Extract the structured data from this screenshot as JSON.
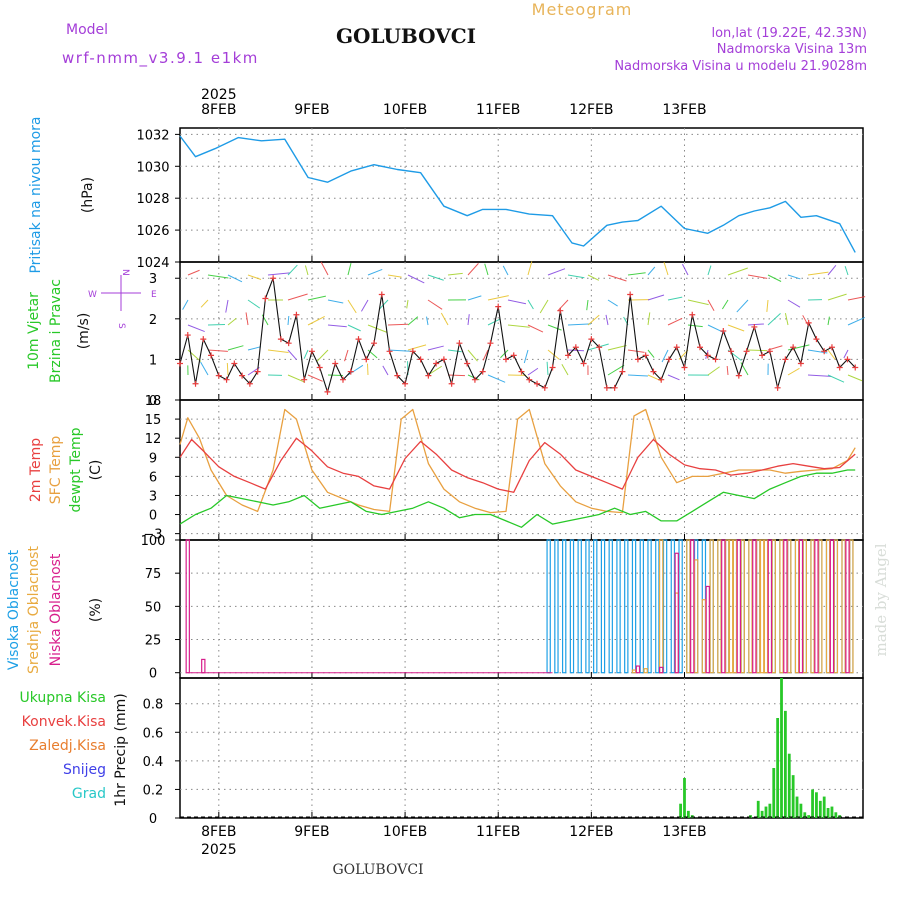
{
  "header": {
    "model_label": "Model",
    "model_name": "wrf-nmm_v3.9.1 e1km",
    "station": "GOLUBOVCI",
    "meteogram_label": "Meteogram",
    "lonlat": "lon,lat (19.22E, 42.33N)",
    "elevation": "Nadmorska Visina 13m",
    "model_elevation": "Nadmorska Visina u modelu 21.9028m"
  },
  "footer": {
    "station": "GOLUBOVCI",
    "credit": "made by Angel"
  },
  "colors": {
    "pressure": "#1e9be6",
    "wind_speed": "#111111",
    "wind_marker": "#e83c3c",
    "temp_2m": "#e84040",
    "temp_sfc": "#e8a040",
    "dewpoint": "#28c828",
    "cloud_high": "#1ea0e6",
    "cloud_mid": "#e8aa40",
    "cloud_low": "#d81e8c",
    "precip_total": "#28c828",
    "precip_conv": "#e84040",
    "precip_snow": "#4040e8",
    "precip_frozen": "#e87e2e",
    "precip_graupel": "#28c8c8",
    "grid": "#888888"
  },
  "time_axis": {
    "year": "2025",
    "days": [
      {
        "label": "8FEB",
        "day": 8
      },
      {
        "label": "9FEB",
        "day": 9
      },
      {
        "label": "10FEB",
        "day": 10
      },
      {
        "label": "11FEB",
        "day": 11
      },
      {
        "label": "12FEB",
        "day": 12
      },
      {
        "label": "13FEB",
        "day": 13
      }
    ],
    "xlim": [
      "2025-02-07 14:00",
      "2025-02-13 12:00"
    ]
  },
  "legend": {
    "pressure": [
      "Pritisak na nivou mora",
      "(hPa)"
    ],
    "wind": [
      "10m Vjetar",
      "Brzina i Pravac",
      "(m/s)"
    ],
    "compass": {
      "w": "W",
      "e": "E",
      "n": "N",
      "s": "S"
    },
    "temp": [
      "2m Temp",
      "SFC Temp",
      "dewpt Temp",
      "(C)"
    ],
    "cloud": [
      "Visoka Oblacnost",
      "Srednja Oblacnost",
      "Niska Oblacnost",
      "(%)"
    ],
    "precip": [
      "Ukupna Kisa",
      "Konvek.Kisa",
      "Zaledj.Kisa",
      "Snijeg",
      "Grad",
      "1hr Precip (mm)"
    ]
  },
  "chart_data": [
    {
      "type": "line",
      "title": "",
      "ylabel": "(hPa)",
      "ylim": [
        1024,
        1032.4
      ],
      "yticks": [
        1024,
        1026,
        1028,
        1030,
        1032
      ],
      "grid": true,
      "series": [
        {
          "name": "Pritisak na nivou mora",
          "x": [
            0,
            4,
            9,
            15,
            21,
            27,
            33,
            38,
            44,
            50,
            56,
            62,
            68,
            74,
            78,
            84,
            90,
            96,
            101,
            104,
            110,
            114,
            118,
            124,
            130,
            136,
            140,
            144,
            148,
            152,
            156,
            160,
            164,
            170,
            174
          ],
          "y": [
            1031.9,
            1030.6,
            1031.1,
            1031.8,
            1031.6,
            1031.7,
            1029.3,
            1029.0,
            1029.7,
            1030.1,
            1029.8,
            1029.6,
            1027.5,
            1026.9,
            1027.3,
            1027.3,
            1027.0,
            1026.9,
            1025.2,
            1025.0,
            1026.3,
            1026.5,
            1026.6,
            1027.5,
            1026.1,
            1025.8,
            1026.3,
            1026.9,
            1027.2,
            1027.4,
            1027.8,
            1026.8,
            1026.9,
            1026.4,
            1024.6
          ]
        }
      ]
    },
    {
      "type": "line",
      "title": "",
      "ylabel": "(m/s)",
      "ylim": [
        0,
        3.4
      ],
      "yticks": [
        0,
        1,
        2,
        3
      ],
      "grid": true,
      "series": [
        {
          "name": "10m Vjetar",
          "x": [
            0,
            2,
            4,
            6,
            8,
            10,
            12,
            14,
            16,
            18,
            20,
            22,
            24,
            26,
            28,
            30,
            32,
            34,
            36,
            38,
            40,
            42,
            44,
            46,
            48,
            50,
            52,
            54,
            56,
            58,
            60,
            62,
            64,
            66,
            68,
            70,
            72,
            74,
            76,
            78,
            80,
            82,
            84,
            86,
            88,
            90,
            92,
            94,
            96,
            98,
            100,
            102,
            104,
            106,
            108,
            110,
            112,
            114,
            116,
            118,
            120,
            122,
            124,
            126,
            128,
            130,
            132,
            134,
            136,
            138,
            140,
            142,
            144,
            146,
            148,
            150,
            152,
            154,
            156,
            158,
            160,
            162,
            164,
            166,
            168,
            170,
            172,
            174
          ],
          "y": [
            0.9,
            1.6,
            0.4,
            1.5,
            1.1,
            0.6,
            0.5,
            0.9,
            0.6,
            0.4,
            0.7,
            2.5,
            3.0,
            1.5,
            1.4,
            2.1,
            0.5,
            1.2,
            0.8,
            0.2,
            0.9,
            0.5,
            0.7,
            1.5,
            1.0,
            1.4,
            2.6,
            1.2,
            0.6,
            0.4,
            1.2,
            1.0,
            0.6,
            0.9,
            1.0,
            0.4,
            1.4,
            0.9,
            0.5,
            0.7,
            1.4,
            2.3,
            1.0,
            1.1,
            0.7,
            0.5,
            0.4,
            0.3,
            0.8,
            2.2,
            1.1,
            1.3,
            0.9,
            1.5,
            1.3,
            0.3,
            0.3,
            0.7,
            2.6,
            1.0,
            1.1,
            0.7,
            0.5,
            1.0,
            1.3,
            0.8,
            2.1,
            1.3,
            1.1,
            1.0,
            1.7,
            1.2,
            0.6,
            1.2,
            1.8,
            1.1,
            1.2,
            0.3,
            1.0,
            1.3,
            0.9,
            1.9,
            1.5,
            1.2,
            1.3,
            0.8,
            1.0,
            0.8
          ]
        }
      ]
    },
    {
      "type": "line",
      "title": "",
      "ylabel": "(C)",
      "ylim": [
        -4,
        18
      ],
      "yticks": [
        -3,
        0,
        3,
        6,
        9,
        12,
        15,
        18
      ],
      "grid": true,
      "series": [
        {
          "name": "2m Temp",
          "x": [
            0,
            3,
            6,
            10,
            14,
            18,
            22,
            26,
            30,
            34,
            38,
            42,
            46,
            50,
            54,
            58,
            62,
            66,
            70,
            74,
            78,
            82,
            86,
            90,
            94,
            98,
            102,
            106,
            110,
            114,
            118,
            122,
            126,
            130,
            134,
            138,
            142,
            146,
            150,
            154,
            158,
            162,
            166,
            170,
            174
          ],
          "y": [
            9.0,
            11.8,
            10.0,
            7.5,
            6.0,
            5.0,
            4.0,
            8.5,
            12.0,
            10.0,
            7.5,
            6.5,
            6.0,
            4.5,
            4.0,
            8.8,
            11.5,
            9.5,
            7.0,
            5.8,
            5.0,
            4.0,
            3.5,
            8.5,
            11.3,
            9.5,
            7.0,
            6.0,
            5.0,
            4.0,
            9.0,
            11.8,
            9.5,
            7.8,
            7.2,
            7.0,
            6.2,
            6.5,
            7.0,
            7.6,
            8.0,
            7.6,
            7.2,
            7.4,
            9.5
          ]
        },
        {
          "name": "SFC Temp",
          "x": [
            0,
            2,
            5,
            8,
            12,
            16,
            20,
            24,
            27,
            30,
            34,
            38,
            42,
            46,
            50,
            54,
            57,
            60,
            64,
            68,
            72,
            76,
            80,
            84,
            87,
            90,
            94,
            98,
            102,
            106,
            110,
            114,
            117,
            120,
            124,
            128,
            132,
            136,
            140,
            144,
            148,
            152,
            156,
            160,
            164,
            168,
            172,
            174
          ],
          "y": [
            11.0,
            15.2,
            12.0,
            7.0,
            3.0,
            1.5,
            0.5,
            7.0,
            16.5,
            15.0,
            7.0,
            3.5,
            2.5,
            1.5,
            0.8,
            0.5,
            15.0,
            16.5,
            8.0,
            4.0,
            2.0,
            1.0,
            0.3,
            0.5,
            15.0,
            16.5,
            8.0,
            4.5,
            2.0,
            1.0,
            0.5,
            0.3,
            15.5,
            16.5,
            9.0,
            5.0,
            6.0,
            6.0,
            6.5,
            7.0,
            7.0,
            7.0,
            6.5,
            6.8,
            7.0,
            7.2,
            8.5,
            10.5
          ]
        },
        {
          "name": "dewpt Temp",
          "x": [
            0,
            4,
            8,
            12,
            16,
            20,
            24,
            28,
            32,
            36,
            40,
            44,
            48,
            52,
            56,
            60,
            64,
            68,
            72,
            76,
            80,
            84,
            88,
            92,
            96,
            100,
            104,
            108,
            112,
            116,
            120,
            124,
            128,
            132,
            136,
            140,
            144,
            148,
            152,
            156,
            160,
            164,
            168,
            172,
            174
          ],
          "y": [
            -1.5,
            0.0,
            1.0,
            3.0,
            2.5,
            2.0,
            1.5,
            2.0,
            3.0,
            1.0,
            1.5,
            2.0,
            0.5,
            0.0,
            0.5,
            1.0,
            2.0,
            1.0,
            -0.5,
            0.0,
            0.0,
            -1.0,
            -2.0,
            0.0,
            -1.5,
            -1.0,
            -0.5,
            0.0,
            1.0,
            0.0,
            0.5,
            -1.0,
            -1.0,
            0.5,
            2.0,
            3.5,
            3.0,
            2.5,
            4.0,
            5.0,
            6.0,
            6.5,
            6.5,
            7.0,
            7.0
          ]
        }
      ]
    },
    {
      "type": "bar",
      "title": "",
      "ylabel": "(%)",
      "ylim": [
        -4,
        100
      ],
      "yticks": [
        0,
        25,
        50,
        75,
        100
      ],
      "grid": true,
      "series": [
        {
          "name": "Visoka Oblacnost",
          "x": [
            117,
            120,
            124,
            128,
            131,
            133,
            135,
            137,
            139,
            141,
            142,
            143,
            145,
            147,
            149,
            150,
            151,
            153,
            155,
            157,
            159,
            161,
            163,
            165,
            167,
            169,
            171,
            173
          ],
          "y": [
            2,
            3,
            100,
            60,
            100,
            85,
            55,
            100,
            100,
            100,
            100,
            100,
            100,
            100,
            100,
            100,
            100,
            100,
            100,
            100,
            100,
            100,
            100,
            100,
            100,
            100,
            100,
            100
          ]
        },
        {
          "name": "Srednja Oblacnost",
          "x": [
            95,
            97,
            99,
            101,
            103,
            105,
            107,
            109,
            111,
            113,
            115,
            117,
            119,
            121,
            123,
            125,
            127,
            129,
            131,
            133,
            135,
            137,
            139,
            141,
            143,
            145,
            147,
            149,
            151,
            153,
            155,
            157,
            159,
            161,
            163,
            165,
            167,
            169,
            171,
            173
          ],
          "y": [
            100,
            100,
            100,
            100,
            100,
            100,
            100,
            100,
            100,
            100,
            100,
            100,
            100,
            100,
            100,
            100,
            100,
            100,
            100,
            100,
            100,
            100,
            100,
            100,
            100,
            100,
            100,
            100,
            100,
            100,
            100,
            100,
            100,
            100,
            100,
            100,
            100,
            100,
            100,
            100
          ]
        },
        {
          "name": "Niska Oblacnost",
          "x": [
            2,
            6,
            118,
            124,
            128,
            132,
            136,
            140,
            144,
            148,
            152,
            156,
            160,
            164,
            168,
            172
          ],
          "y": [
            100,
            10,
            5,
            4,
            90,
            100,
            65,
            100,
            100,
            100,
            100,
            100,
            100,
            100,
            100,
            100
          ]
        }
      ]
    },
    {
      "type": "bar",
      "title": "",
      "ylabel": "1hr Precip (mm)",
      "ylim": [
        0,
        0.98
      ],
      "yticks": [
        0,
        0.2,
        0.4,
        0.6,
        0.8
      ],
      "grid": true,
      "series": [
        {
          "name": "Ukupna Kisa",
          "x": [
            129,
            130,
            131,
            132,
            147,
            149,
            150,
            151,
            152,
            153,
            154,
            155,
            156,
            157,
            158,
            159,
            160,
            161,
            162,
            163,
            164,
            165,
            166,
            167,
            168,
            169,
            170
          ],
          "y": [
            0.1,
            0.28,
            0.05,
            0.02,
            0.02,
            0.12,
            0.05,
            0.08,
            0.1,
            0.35,
            0.7,
            0.98,
            0.75,
            0.45,
            0.3,
            0.15,
            0.1,
            0.04,
            0.02,
            0.2,
            0.18,
            0.12,
            0.15,
            0.07,
            0.08,
            0.04,
            0.02
          ]
        }
      ]
    }
  ]
}
